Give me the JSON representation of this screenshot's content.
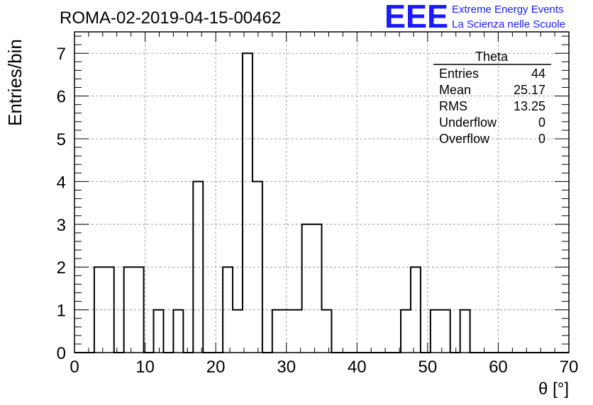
{
  "header": {
    "run_title": "ROMA-02-2019-04-15-00462",
    "logo_text": "EEE",
    "logo_line1": "Extreme Energy Events",
    "logo_line2": "La Scienza nelle Scuole",
    "logo_color": "#1a1aff"
  },
  "stats_box": {
    "title": "Theta",
    "rows": [
      {
        "label": "Entries",
        "value": "44"
      },
      {
        "label": "Mean",
        "value": "25.17"
      },
      {
        "label": "RMS",
        "value": "13.25"
      },
      {
        "label": "Underflow",
        "value": "0"
      },
      {
        "label": "Overflow",
        "value": "0"
      }
    ]
  },
  "chart_data": {
    "type": "bar",
    "title": "ROMA-02-2019-04-15-00462",
    "xlabel": "θ [°]",
    "ylabel": "Entries/bin",
    "xlim": [
      0,
      70
    ],
    "ylim": [
      0,
      7.5
    ],
    "bin_width": 1.4,
    "bin_edges_start": 0,
    "grid": true,
    "x_ticks": [
      "0",
      "10",
      "20",
      "30",
      "40",
      "50",
      "60",
      "70"
    ],
    "y_ticks": [
      "0",
      "1",
      "2",
      "3",
      "4",
      "5",
      "6",
      "7"
    ],
    "values": [
      0,
      0,
      2,
      2,
      0,
      2,
      2,
      0,
      1,
      0,
      1,
      0,
      4,
      0,
      0,
      2,
      1,
      7,
      4,
      0,
      1,
      1,
      1,
      3,
      3,
      1,
      0,
      0,
      0,
      0,
      0,
      0,
      0,
      1,
      2,
      0,
      1,
      1,
      0,
      1,
      0,
      0,
      0,
      0,
      0,
      0,
      0,
      0,
      0,
      0
    ]
  }
}
